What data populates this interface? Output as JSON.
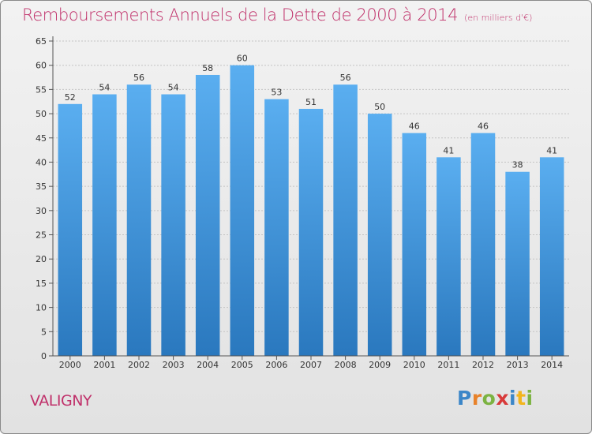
{
  "header": {
    "title": "Remboursements Annuels de la Dette de 2000 à 2014",
    "subtitle": "(en milliers d'€)"
  },
  "footer": {
    "commune": "VALIGNY",
    "logo_letters": [
      "P",
      "r",
      "o",
      "x",
      "i",
      "t",
      "i"
    ],
    "logo_colors": [
      "#3b86c8",
      "#e8822a",
      "#7cb342",
      "#d83a3a",
      "#3b86c8",
      "#f2b51c",
      "#7cb342"
    ]
  },
  "chart_data": {
    "type": "bar",
    "categories": [
      "2000",
      "2001",
      "2002",
      "2003",
      "2004",
      "2005",
      "2006",
      "2007",
      "2008",
      "2009",
      "2010",
      "2011",
      "2012",
      "2013",
      "2014"
    ],
    "values": [
      52,
      54,
      56,
      54,
      58,
      60,
      53,
      51,
      56,
      50,
      46,
      41,
      46,
      38,
      41
    ],
    "ylim": [
      0,
      65
    ],
    "yticks": [
      0,
      5,
      10,
      15,
      20,
      25,
      30,
      35,
      40,
      45,
      50,
      55,
      60,
      65
    ],
    "grid": true,
    "bar_color_top": "#5aaef0",
    "bar_color_bottom": "#2a78be"
  }
}
